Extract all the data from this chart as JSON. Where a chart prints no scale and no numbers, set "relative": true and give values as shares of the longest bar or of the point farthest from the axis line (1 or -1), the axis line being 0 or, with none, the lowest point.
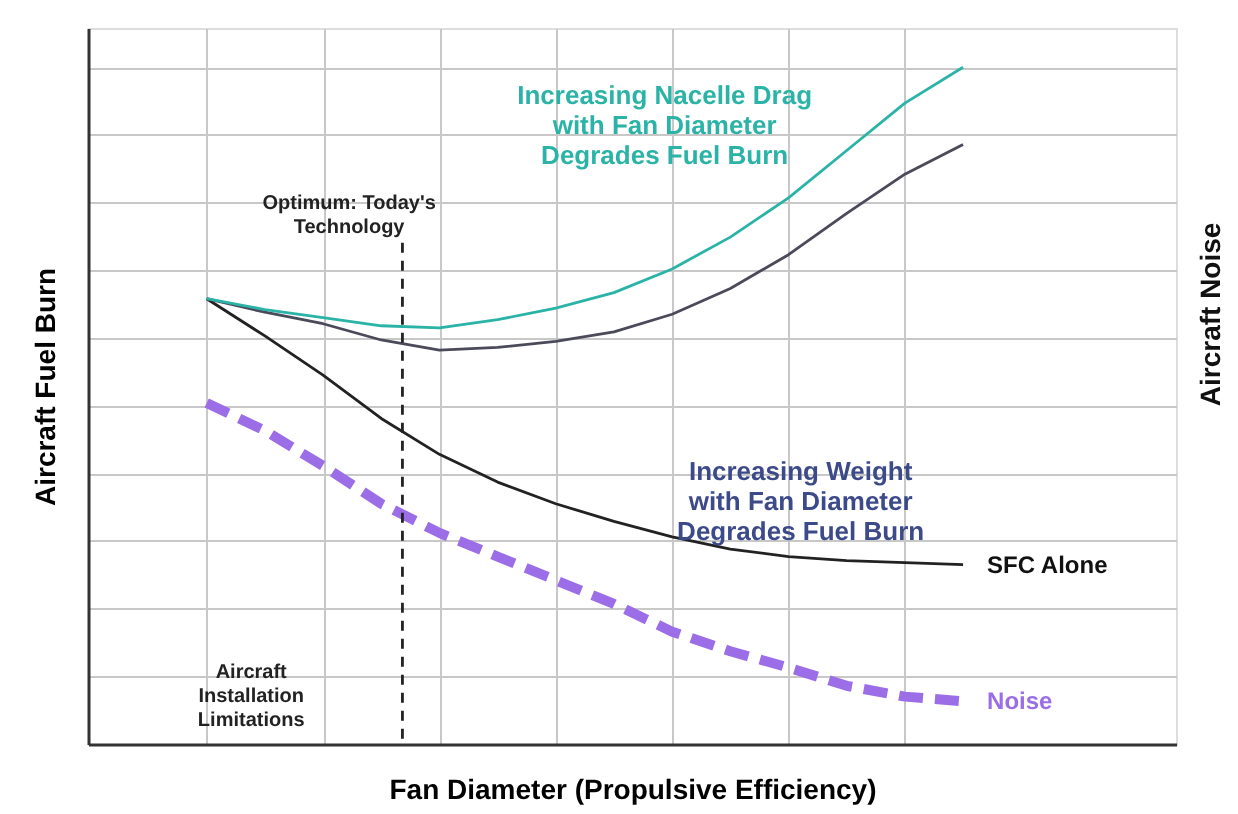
{
  "chart_data": {
    "type": "line",
    "relative": true,
    "xlabel": "Fan Diameter (Propulsive Efficiency)",
    "ylabel": "Aircraft Fuel Burn",
    "categories": [
      null,
      null,
      null,
      null,
      null,
      null,
      null,
      null,
      null,
      null,
      null,
      null,
      null,
      null
    ],
    "grid": true,
    "series": [
      {
        "name": "SFC Alone",
        "color": "#222222",
        "line_style": "solid",
        "values": [
          0.658,
          0.603,
          0.545,
          0.481,
          0.428,
          0.387,
          0.355,
          0.329,
          0.306,
          0.288,
          0.277,
          0.271,
          0.268,
          0.265
        ]
      },
      {
        "color": "#4a4a5a",
        "line_style": "solid",
        "values": [
          0.658,
          0.638,
          0.621,
          0.597,
          0.582,
          0.586,
          0.595,
          0.609,
          0.635,
          0.673,
          0.723,
          0.784,
          0.842,
          0.886
        ]
      },
      {
        "color": "#2ab3a6",
        "line_style": "solid",
        "values": [
          0.658,
          0.642,
          0.63,
          0.618,
          0.615,
          0.627,
          0.644,
          0.667,
          0.702,
          0.749,
          0.807,
          0.877,
          0.947,
          1.0
        ]
      },
      {
        "name": "Noise",
        "color": "#9b6ee8",
        "line_style": "dashed",
        "values": [
          0.504,
          0.463,
          0.411,
          0.355,
          0.312,
          0.277,
          0.242,
          0.207,
          0.166,
          0.137,
          0.113,
          0.086,
          0.07,
          0.063
        ]
      }
    ],
    "annotations": [
      "Increasing Nacelle Drag\nwith Fan Diameter\nDegrades Fuel Burn",
      "Optimum: Today's\nTechnology",
      "Increasing Weight\nwith Fan Diameter\nDegrades Fuel Burn",
      "Aircraft\nInstallation\nLimitations",
      "Aircraft Noise"
    ]
  }
}
